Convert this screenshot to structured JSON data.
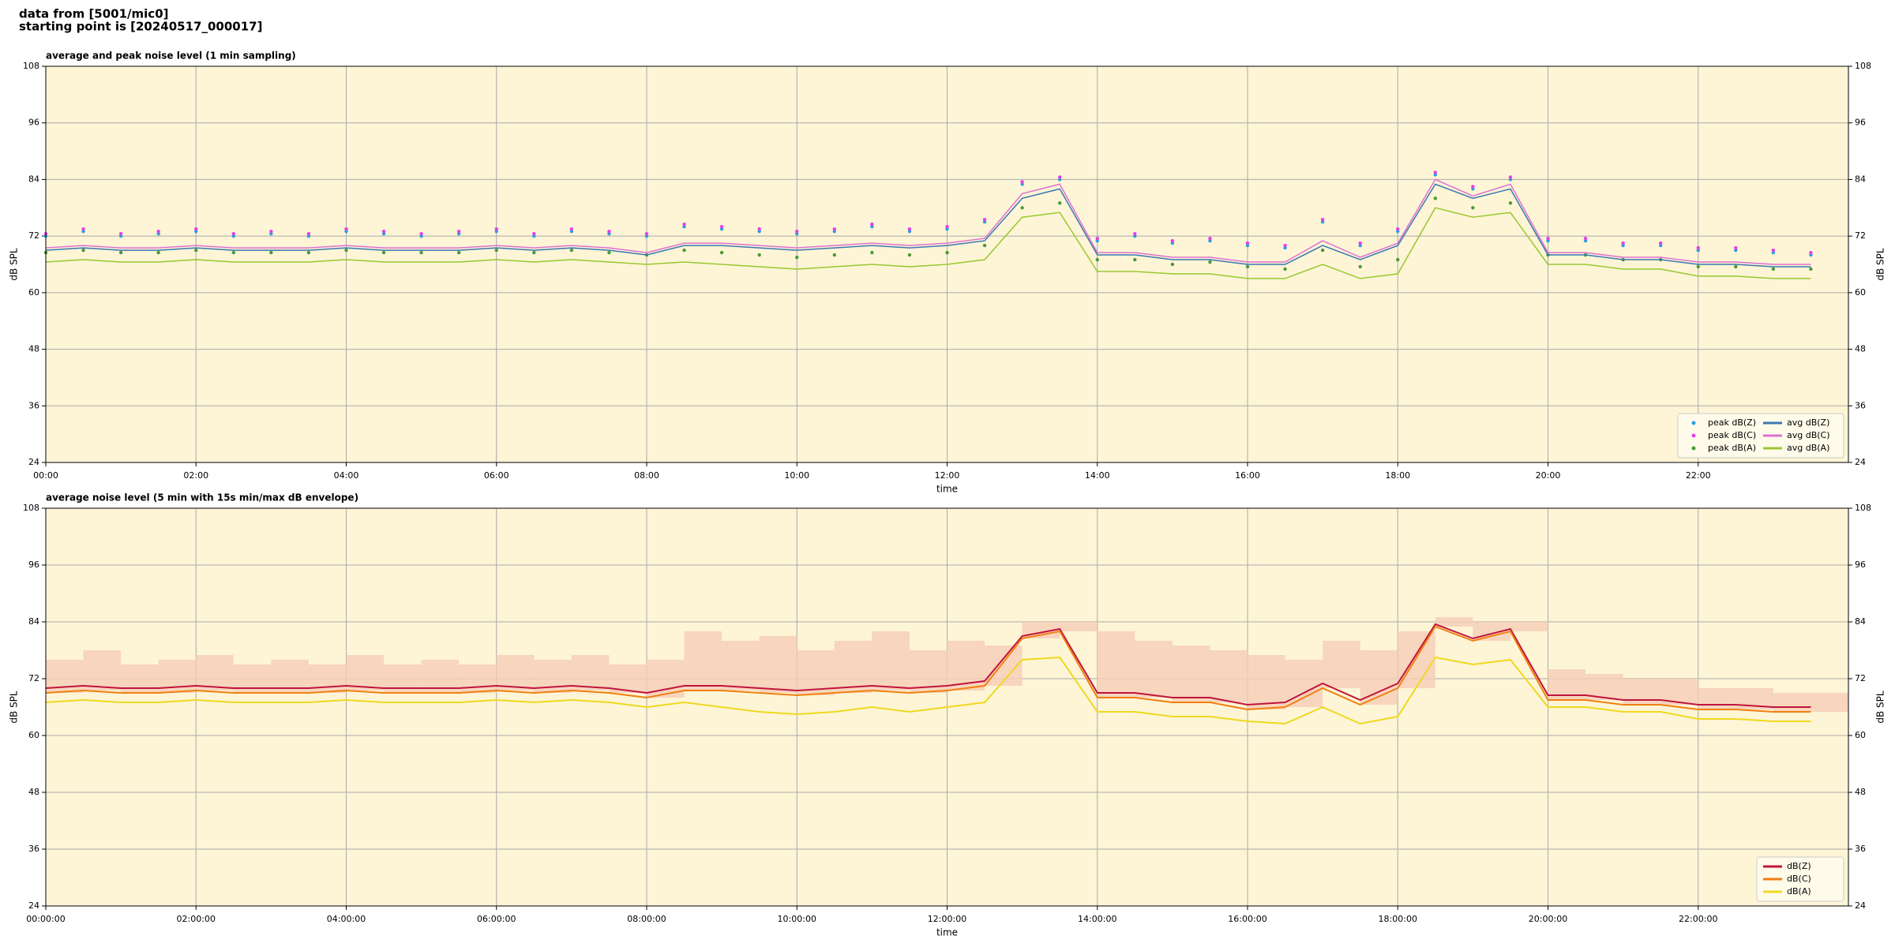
{
  "header": {
    "line1": "data from [5001/mic0]",
    "line2": "starting point is [20240517_000017]"
  },
  "chart_data": [
    {
      "type": "line",
      "title": "average and peak noise level (1 min sampling)",
      "x_label": "time",
      "y_label": "dB SPL",
      "background": "#fdf5d6",
      "grid": true,
      "legend": "lower right",
      "legend_columns": 2,
      "xlim": [
        0,
        24
      ],
      "ylim": [
        24,
        108
      ],
      "xticks": [
        {
          "value": 0,
          "label": "00:00"
        },
        {
          "value": 2,
          "label": "02:00"
        },
        {
          "value": 4,
          "label": "04:00"
        },
        {
          "value": 6,
          "label": "06:00"
        },
        {
          "value": 8,
          "label": "08:00"
        },
        {
          "value": 10,
          "label": "10:00"
        },
        {
          "value": 12,
          "label": "12:00"
        },
        {
          "value": 14,
          "label": "14:00"
        },
        {
          "value": 16,
          "label": "16:00"
        },
        {
          "value": 18,
          "label": "18:00"
        },
        {
          "value": 20,
          "label": "20:00"
        },
        {
          "value": 22,
          "label": "22:00"
        }
      ],
      "yticks": [
        24,
        36,
        48,
        60,
        72,
        84,
        96,
        108
      ],
      "x": [
        0,
        0.5,
        1,
        1.5,
        2,
        2.5,
        3,
        3.5,
        4,
        4.5,
        5,
        5.5,
        6,
        6.5,
        7,
        7.5,
        8,
        8.5,
        9,
        9.5,
        10,
        10.5,
        11,
        11.5,
        12,
        12.5,
        13,
        13.5,
        14,
        14.5,
        15,
        15.5,
        16,
        16.5,
        17,
        17.5,
        18,
        18.5,
        19,
        19.5,
        20,
        20.5,
        21,
        21.5,
        22,
        22.5,
        23,
        23.5
      ],
      "series": [
        {
          "name": "peak dB(Z)",
          "type": "scatter",
          "color": "#2a9fe0",
          "values": [
            72,
            73,
            72,
            72.5,
            73,
            72,
            72.5,
            72,
            73,
            72.5,
            72,
            72.5,
            73,
            72,
            73,
            72.5,
            72,
            74,
            73.5,
            73,
            72.5,
            73,
            74,
            73,
            73.5,
            75,
            83,
            84,
            71,
            72,
            70.5,
            71,
            70,
            69.5,
            75,
            70,
            73,
            85,
            82,
            84,
            71,
            71,
            70,
            70,
            69,
            69,
            68.5,
            68
          ]
        },
        {
          "name": "peak dB(C)",
          "type": "scatter",
          "color": "#e83ee8",
          "values": [
            72.5,
            73.5,
            72.5,
            73,
            73.5,
            72.5,
            73,
            72.5,
            73.5,
            73,
            72.5,
            73,
            73.5,
            72.5,
            73.5,
            73,
            72.5,
            74.5,
            74,
            73.5,
            73,
            73.5,
            74.5,
            73.5,
            74,
            75.5,
            83.5,
            84.5,
            71.5,
            72.5,
            71,
            71.5,
            70.5,
            70,
            75.5,
            70.5,
            73.5,
            85.5,
            82.5,
            84.5,
            71.5,
            71.5,
            70.5,
            70.5,
            69.5,
            69.5,
            69,
            68.5
          ]
        },
        {
          "name": "peak dB(A)",
          "type": "scatter",
          "color": "#4a9a3a",
          "values": [
            68.5,
            69,
            68.5,
            68.5,
            69,
            68.5,
            68.5,
            68.5,
            69,
            68.5,
            68.5,
            68.5,
            69,
            68.5,
            69,
            68.5,
            68,
            69,
            68.5,
            68,
            67.5,
            68,
            68.5,
            68,
            68.5,
            70,
            78,
            79,
            67,
            67,
            66,
            66.5,
            65.5,
            65,
            69,
            65.5,
            67,
            80,
            78,
            79,
            68,
            68,
            67,
            67,
            65.5,
            65.5,
            65,
            65
          ]
        },
        {
          "name": "avg dB(Z)",
          "type": "line",
          "color": "#3a78b0",
          "values": [
            69,
            69.5,
            69,
            69,
            69.5,
            69,
            69,
            69,
            69.5,
            69,
            69,
            69,
            69.5,
            69,
            69.5,
            69,
            68,
            70,
            70,
            69.5,
            69,
            69.5,
            70,
            69.5,
            70,
            71,
            80,
            82,
            68,
            68,
            67,
            67,
            66,
            66,
            70,
            67,
            70,
            83,
            80,
            82,
            68,
            68,
            67,
            67,
            66,
            66,
            65.5,
            65.5
          ]
        },
        {
          "name": "avg dB(C)",
          "type": "line",
          "color": "#e070d0",
          "values": [
            69.5,
            70,
            69.5,
            69.5,
            70,
            69.5,
            69.5,
            69.5,
            70,
            69.5,
            69.5,
            69.5,
            70,
            69.5,
            70,
            69.5,
            68.5,
            70.5,
            70.5,
            70,
            69.5,
            70,
            70.5,
            70,
            70.5,
            71.5,
            81,
            83,
            68.5,
            68.5,
            67.5,
            67.5,
            66.5,
            66.5,
            71,
            67.5,
            70.5,
            84,
            80.5,
            83,
            68.5,
            68.5,
            67.5,
            67.5,
            66.5,
            66.5,
            66,
            66
          ]
        },
        {
          "name": "avg dB(A)",
          "type": "line",
          "color": "#9ac830",
          "values": [
            66.5,
            67,
            66.5,
            66.5,
            67,
            66.5,
            66.5,
            66.5,
            67,
            66.5,
            66.5,
            66.5,
            67,
            66.5,
            67,
            66.5,
            66,
            66.5,
            66,
            65.5,
            65,
            65.5,
            66,
            65.5,
            66,
            67,
            76,
            77,
            64.5,
            64.5,
            64,
            64,
            63,
            63,
            66,
            63,
            64,
            78,
            76,
            77,
            66,
            66,
            65,
            65,
            63.5,
            63.5,
            63,
            63
          ]
        }
      ]
    },
    {
      "type": "line",
      "title": "average noise level (5 min with 15s min/max dB envelope)",
      "x_label": "time",
      "y_label": "dB SPL",
      "background": "#fdf5d6",
      "grid": true,
      "legend": "lower right",
      "legend_columns": 1,
      "xlim": [
        0,
        24
      ],
      "ylim": [
        24,
        108
      ],
      "xticks": [
        {
          "value": 0,
          "label": "00:00:00"
        },
        {
          "value": 2,
          "label": "02:00:00"
        },
        {
          "value": 4,
          "label": "04:00:00"
        },
        {
          "value": 6,
          "label": "06:00:00"
        },
        {
          "value": 8,
          "label": "08:00:00"
        },
        {
          "value": 10,
          "label": "10:00:00"
        },
        {
          "value": 12,
          "label": "12:00:00"
        },
        {
          "value": 14,
          "label": "14:00:00"
        },
        {
          "value": 16,
          "label": "16:00:00"
        },
        {
          "value": 18,
          "label": "18:00:00"
        },
        {
          "value": 20,
          "label": "20:00:00"
        },
        {
          "value": 22,
          "label": "22:00:00"
        }
      ],
      "yticks": [
        24,
        36,
        48,
        60,
        72,
        84,
        96,
        108
      ],
      "x": [
        0,
        0.5,
        1,
        1.5,
        2,
        2.5,
        3,
        3.5,
        4,
        4.5,
        5,
        5.5,
        6,
        6.5,
        7,
        7.5,
        8,
        8.5,
        9,
        9.5,
        10,
        10.5,
        11,
        11.5,
        12,
        12.5,
        13,
        13.5,
        14,
        14.5,
        15,
        15.5,
        16,
        16.5,
        17,
        17.5,
        18,
        18.5,
        19,
        19.5,
        20,
        20.5,
        21,
        21.5,
        22,
        22.5,
        23,
        23.5
      ],
      "envelope": {
        "color": "#f6cdb6",
        "values": [
          76,
          78,
          75,
          76,
          77,
          75,
          76,
          75,
          77,
          75,
          76,
          75,
          77,
          76,
          77,
          75,
          76,
          82,
          80,
          81,
          78,
          80,
          82,
          78,
          80,
          79,
          84,
          84,
          82,
          80,
          79,
          78,
          77,
          76,
          80,
          78,
          82,
          85,
          84,
          84,
          74,
          73,
          72,
          72,
          70,
          70,
          69,
          69
        ]
      },
      "series": [
        {
          "name": "dB(Z)",
          "type": "line",
          "color": "#c0143c",
          "values": [
            70,
            70.5,
            70,
            70,
            70.5,
            70,
            70,
            70,
            70.5,
            70,
            70,
            70,
            70.5,
            70,
            70.5,
            70,
            69,
            70.5,
            70.5,
            70,
            69.5,
            70,
            70.5,
            70,
            70.5,
            71.5,
            81,
            82.5,
            69,
            69,
            68,
            68,
            66.5,
            67,
            71,
            67.5,
            71,
            83.5,
            80.5,
            82.5,
            68.5,
            68.5,
            67.5,
            67.5,
            66.5,
            66.5,
            66,
            66
          ]
        },
        {
          "name": "dB(C)",
          "type": "line",
          "color": "#f08010",
          "values": [
            69,
            69.5,
            69,
            69,
            69.5,
            69,
            69,
            69,
            69.5,
            69,
            69,
            69,
            69.5,
            69,
            69.5,
            69,
            68,
            69.5,
            69.5,
            69,
            68.5,
            69,
            69.5,
            69,
            69.5,
            70.5,
            80.5,
            82,
            68,
            68,
            67,
            67,
            65.5,
            66,
            70,
            66.5,
            70,
            83,
            80,
            82,
            67.5,
            67.5,
            66.5,
            66.5,
            65.5,
            65.5,
            65,
            65
          ]
        },
        {
          "name": "dB(A)",
          "type": "line",
          "color": "#f0d820",
          "values": [
            67,
            67.5,
            67,
            67,
            67.5,
            67,
            67,
            67,
            67.5,
            67,
            67,
            67,
            67.5,
            67,
            67.5,
            67,
            66,
            67,
            66,
            65,
            64.5,
            65,
            66,
            65,
            66,
            67,
            76,
            76.5,
            65,
            65,
            64,
            64,
            63,
            62.5,
            66,
            62.5,
            64,
            76.5,
            75,
            76,
            66,
            66,
            65,
            65,
            63.5,
            63.5,
            63,
            63
          ]
        }
      ]
    }
  ]
}
